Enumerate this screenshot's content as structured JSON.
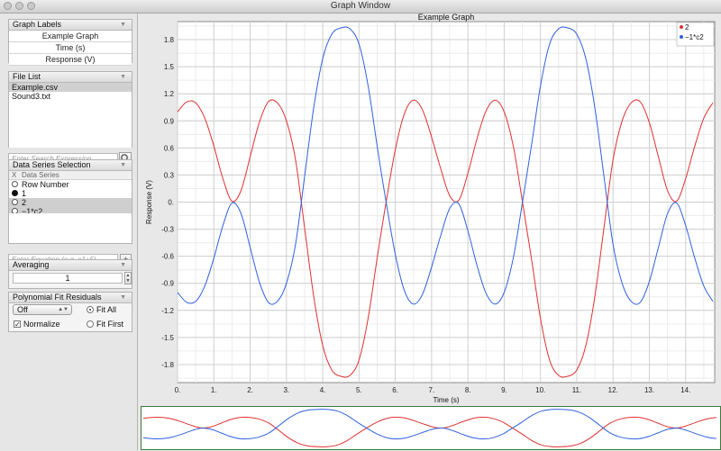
{
  "window": {
    "title": "Graph Window"
  },
  "graph_labels": {
    "header": "Graph Labels",
    "title_value": "Example Graph",
    "xlabel_value": "Time (s)",
    "ylabel_value": "Response (V)"
  },
  "file_list": {
    "header": "File List",
    "files": [
      "Example.csv",
      "Sound3.txt"
    ]
  },
  "search": {
    "placeholder": "Enter Search Expression"
  },
  "data_series": {
    "header": "Data Series Selection",
    "col_x": "X",
    "col_series": "Data Series",
    "rows": [
      "Row Number",
      "1",
      "2",
      "−1*c2"
    ]
  },
  "equation": {
    "placeholder": "Enter Equation (e.g. c1+5)",
    "add_label": "+"
  },
  "averaging": {
    "header": "Averaging",
    "value": "1"
  },
  "poly_fit": {
    "header": "Polynomial Fit Residuals",
    "selected": "Off",
    "normalize_label": "Normalize",
    "fit_all_label": "Fit All",
    "fit_first_label": "Fit First"
  },
  "colors": {
    "series_red": "#e03030",
    "series_blue": "#3060e0",
    "minimap_border": "#3d7a3d"
  },
  "chart_data": {
    "type": "line",
    "title": "Example Graph",
    "xlabel": "Time (s)",
    "ylabel": "Response (V)",
    "xlim": [
      0,
      14.8
    ],
    "ylim": [
      -2.0,
      2.0
    ],
    "x_ticks": [
      "0.",
      "1.",
      "2.",
      "3.",
      "4.",
      "5.",
      "6.",
      "7.",
      "8.",
      "9.",
      "10.",
      "11.",
      "12.",
      "13.",
      "14."
    ],
    "y_ticks": [
      "1.8",
      "1.5",
      "1.2",
      "0.9",
      "0.6",
      "0.3",
      "0.",
      "-0.3",
      "-0.6",
      "-0.9",
      "-1.2",
      "-1.5",
      "-1.8"
    ],
    "y_tick_values": [
      1.8,
      1.5,
      1.2,
      0.9,
      0.6,
      0.3,
      0,
      -0.3,
      -0.6,
      -0.9,
      -1.2,
      -1.5,
      -1.8
    ],
    "grid": true,
    "legend": "top-right",
    "series": [
      {
        "name": "2",
        "color": "#e03030",
        "x": [
          0,
          0.25,
          0.5,
          0.75,
          1,
          1.25,
          1.5,
          1.75,
          2,
          2.25,
          2.5,
          2.75,
          3,
          3.25,
          3.5,
          3.75,
          4,
          4.25,
          4.5,
          4.75,
          5,
          5.25,
          5.5,
          5.75,
          6,
          6.25,
          6.5,
          6.75,
          7,
          7.25,
          7.5,
          7.75,
          8,
          8.25,
          8.5,
          8.75,
          9,
          9.25,
          9.5,
          9.75,
          10,
          10.25,
          10.5,
          10.75,
          11,
          11.25,
          11.5,
          11.75,
          12,
          12.25,
          12.5,
          12.75,
          13,
          13.25,
          13.5,
          13.75,
          14,
          14.25,
          14.5,
          14.75
        ],
        "y": [
          1.0,
          1.11,
          1.1,
          0.93,
          0.62,
          0.26,
          0.01,
          0.13,
          0.5,
          0.88,
          1.11,
          1.1,
          0.9,
          0.47,
          -0.28,
          -1.04,
          -1.59,
          -1.86,
          -1.93,
          -1.92,
          -1.75,
          -1.29,
          -0.62,
          0.01,
          0.58,
          0.98,
          1.13,
          1.02,
          0.72,
          0.37,
          0.07,
          0.02,
          0.32,
          0.7,
          1.01,
          1.13,
          1.0,
          0.62,
          0.01,
          -0.62,
          -1.29,
          -1.75,
          -1.92,
          -1.93,
          -1.86,
          -1.59,
          -1.04,
          -0.28,
          0.47,
          0.9,
          1.1,
          1.11,
          0.88,
          0.5,
          0.13,
          0.01,
          0.26,
          0.62,
          0.93,
          1.1
        ]
      },
      {
        "name": "−1*c2",
        "color": "#3060e0",
        "x": [
          0,
          0.25,
          0.5,
          0.75,
          1,
          1.25,
          1.5,
          1.75,
          2,
          2.25,
          2.5,
          2.75,
          3,
          3.25,
          3.5,
          3.75,
          4,
          4.25,
          4.5,
          4.75,
          5,
          5.25,
          5.5,
          5.75,
          6,
          6.25,
          6.5,
          6.75,
          7,
          7.25,
          7.5,
          7.75,
          8,
          8.25,
          8.5,
          8.75,
          9,
          9.25,
          9.5,
          9.75,
          10,
          10.25,
          10.5,
          10.75,
          11,
          11.25,
          11.5,
          11.75,
          12,
          12.25,
          12.5,
          12.75,
          13,
          13.25,
          13.5,
          13.75,
          14,
          14.25,
          14.5,
          14.75
        ],
        "y": [
          -1.0,
          -1.11,
          -1.1,
          -0.93,
          -0.62,
          -0.26,
          -0.01,
          -0.13,
          -0.5,
          -0.88,
          -1.11,
          -1.1,
          -0.9,
          -0.47,
          0.28,
          1.04,
          1.59,
          1.86,
          1.93,
          1.92,
          1.75,
          1.29,
          0.62,
          -0.01,
          -0.58,
          -0.98,
          -1.13,
          -1.02,
          -0.72,
          -0.37,
          -0.07,
          -0.02,
          -0.32,
          -0.7,
          -1.01,
          -1.13,
          -1.0,
          -0.62,
          -0.01,
          0.62,
          1.29,
          1.75,
          1.92,
          1.93,
          1.86,
          1.59,
          1.04,
          0.28,
          -0.47,
          -0.9,
          -1.1,
          -1.11,
          -0.88,
          -0.5,
          -0.13,
          -0.01,
          -0.26,
          -0.62,
          -0.93,
          -1.1
        ]
      }
    ]
  }
}
